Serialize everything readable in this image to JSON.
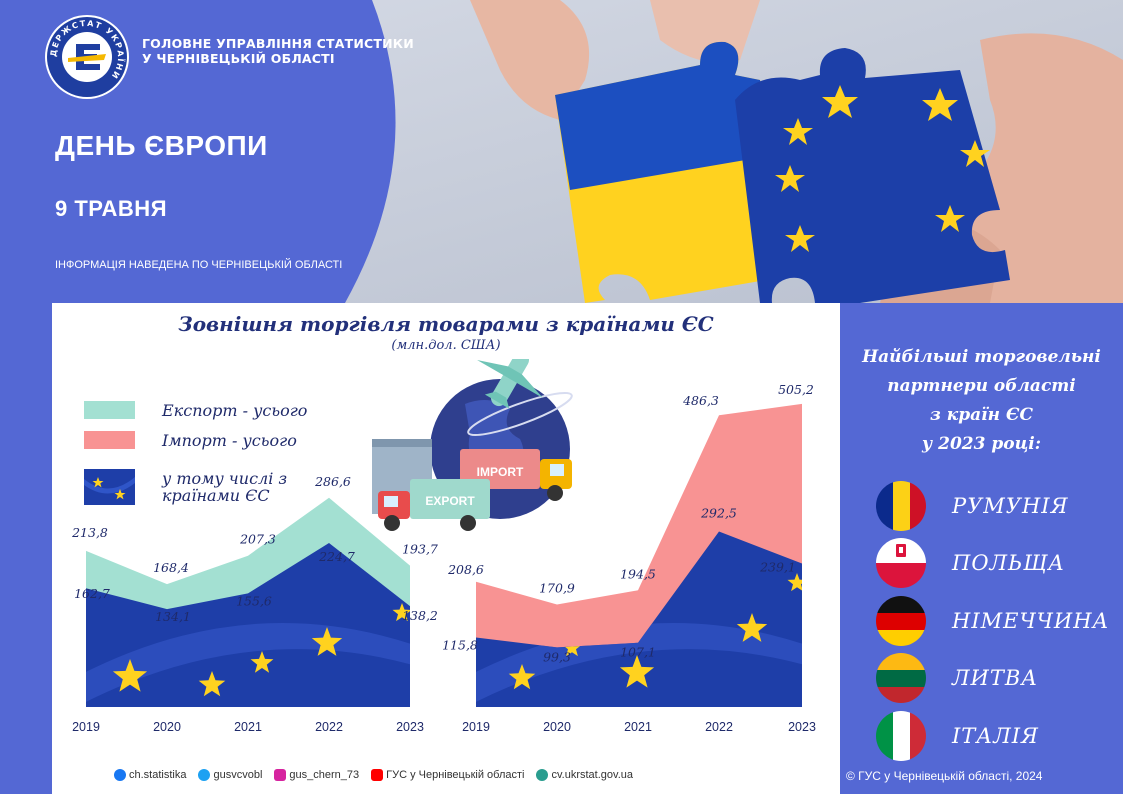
{
  "header": {
    "logo_text": "ДЕРЖСТАТ УКРАЇНИ",
    "org_name_line1": "ГОЛОВНЕ УПРАВЛІННЯ СТАТИСТИКИ",
    "org_name_line2": "У ЧЕРНІВЕЦЬКІЙ ОБЛАСТІ",
    "title": "ДЕНЬ ЄВРОПИ",
    "date": "9 ТРАВНЯ",
    "note": "ІНФОРМАЦІЯ НАВЕДЕНА ПО ЧЕРНІВЕЦЬКІЙ ОБЛАСТІ"
  },
  "main": {
    "title": "Зовнішня торгівля товарами з країнами ЄС",
    "subtitle": "(млн.дол. США)",
    "legend": [
      {
        "label": "Експорт - усього",
        "color": "#a3e0d2"
      },
      {
        "label": "Імпорт - усього",
        "color": "#f89393"
      },
      {
        "label_line1": "у тому числі з",
        "label_line2": "країнами ЄС",
        "color": "#1e3ea8"
      }
    ],
    "illustration": {
      "import_label": "IMPORT",
      "export_label": "EXPORT"
    }
  },
  "chart_data": [
    {
      "type": "area",
      "x": [
        "2019",
        "2020",
        "2021",
        "2022",
        "2023"
      ],
      "series": [
        {
          "name": "Експорт - усього",
          "values": [
            213.8,
            168.4,
            207.3,
            286.6,
            193.7
          ],
          "labels": [
            "213,8",
            "168,4",
            "207,3",
            "286,6",
            "193,7"
          ],
          "color": "#a3e0d2"
        },
        {
          "name": "у тому числі з країнами ЄС",
          "values": [
            162.7,
            134.1,
            155.6,
            224.7,
            138.2
          ],
          "labels": [
            "162,7",
            "134,1",
            "155,6",
            "224,7",
            "138,2"
          ],
          "color": "#1e3ea8"
        }
      ],
      "ylim": [
        0,
        300
      ]
    },
    {
      "type": "area",
      "x": [
        "2019",
        "2020",
        "2021",
        "2022",
        "2023"
      ],
      "series": [
        {
          "name": "Імпорт - усього",
          "values": [
            208.6,
            170.9,
            194.5,
            486.3,
            505.2
          ],
          "labels": [
            "208,6",
            "170,9",
            "194,5",
            "486,3",
            "505,2"
          ],
          "color": "#f89393"
        },
        {
          "name": "у тому числі з країнами ЄС",
          "values": [
            115.8,
            99.3,
            107.1,
            292.5,
            239.1
          ],
          "labels": [
            "115,8",
            "99,3",
            "107,1",
            "292,5",
            "239,1"
          ],
          "color": "#1e3ea8"
        }
      ],
      "ylim": [
        0,
        560
      ]
    }
  ],
  "footer": [
    {
      "icon": "facebook-icon",
      "text": "ch.statistika",
      "color": "#1877f2"
    },
    {
      "icon": "twitter-icon",
      "text": "gusvcvobl",
      "color": "#1da1f2"
    },
    {
      "icon": "instagram-icon",
      "text": "gus_chern_73",
      "color": "#d6249f"
    },
    {
      "icon": "youtube-icon",
      "text": "ГУС у Чернівецькій області",
      "color": "#ff0000"
    },
    {
      "icon": "globe-icon",
      "text": "cv.ukrstat.gov.ua",
      "color": "#2a9d8f"
    }
  ],
  "side": {
    "title_line1": "Найбільші торговельні",
    "title_line2": "партнери області",
    "title_line3": "з країн ЄС",
    "title_line4": "у 2023 році:",
    "partners": [
      {
        "name": "РУМУНІЯ",
        "flag": "romania-flag-icon"
      },
      {
        "name": "ПОЛЬЩА",
        "flag": "poland-flag-icon"
      },
      {
        "name": "НІМЕЧЧИНА",
        "flag": "germany-flag-icon"
      },
      {
        "name": "ЛИТВА",
        "flag": "lithuania-flag-icon"
      },
      {
        "name": "ІТАЛІЯ",
        "flag": "italy-flag-icon"
      }
    ],
    "copyright": "© ГУС у Чернівецькій  області, 2024"
  }
}
